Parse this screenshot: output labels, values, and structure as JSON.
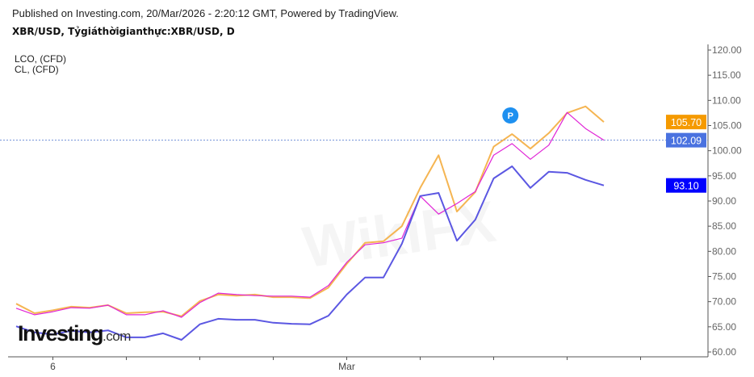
{
  "header": {
    "published": "Published on Investing.com, 20/Mar/2026 - 2:20:12 GMT, Powered by TradingView.",
    "symbol_line": "XBR/USD, Tỷgiáthờigianthực:XBR/USD, D"
  },
  "legend": [
    "LCO,  (CFD)",
    "CL,  (CFD)"
  ],
  "logo": {
    "main": "Investing",
    "suffix": ".com"
  },
  "watermark": "WikiFX",
  "chart_data": {
    "type": "line",
    "title": "XBR/USD, Tỷgiáthờigianthực:XBR/USD, D",
    "x_tick_labels": [
      {
        "index": 2,
        "label": "6"
      },
      {
        "index": 18,
        "label": "Mar"
      }
    ],
    "x_tick_indices": [
      2,
      6,
      10,
      14,
      18,
      22,
      26,
      30,
      34
    ],
    "ylim": [
      60,
      120
    ],
    "y_ticks": [
      "60.00",
      "65.00",
      "70.00",
      "75.00",
      "80.00",
      "85.00",
      "90.00",
      "95.00",
      "100.00",
      "105.00",
      "110.00",
      "115.00",
      "120.00"
    ],
    "grid": false,
    "reference_line": 102.09,
    "series": [
      {
        "name": "XBR/USD",
        "color": "#f5b552",
        "last_label": "105.70",
        "label_bg": "#f59a00",
        "values": [
          69.6,
          67.7,
          68.3,
          69.0,
          68.8,
          69.3,
          67.7,
          67.9,
          68.0,
          67.1,
          70.1,
          71.4,
          71.2,
          71.4,
          70.9,
          70.9,
          70.7,
          72.8,
          77.5,
          81.7,
          82.0,
          85.0,
          92.6,
          99.1,
          87.9,
          91.8,
          100.8,
          103.3,
          100.4,
          103.5,
          107.5,
          108.8,
          105.7
        ]
      },
      {
        "name": "LCO, (CFD)",
        "color": "#e024d6",
        "last_label": "102.09",
        "label_bg": "#4a72e0",
        "values": [
          68.7,
          67.4,
          68.0,
          68.8,
          68.7,
          69.3,
          67.4,
          67.4,
          68.2,
          66.9,
          69.8,
          71.7,
          71.4,
          71.2,
          71.1,
          71.1,
          70.9,
          73.2,
          77.8,
          81.3,
          81.7,
          82.6,
          91.0,
          87.4,
          89.5,
          91.9,
          99.1,
          101.4,
          98.3,
          101.1,
          107.6,
          104.4,
          102.09
        ]
      },
      {
        "name": "CL, (CFD)",
        "color": "#5b57e2",
        "last_label": "93.10",
        "label_bg": "#0000ff",
        "values": [
          65.1,
          63.9,
          63.5,
          64.2,
          63.9,
          64.3,
          62.9,
          62.9,
          63.7,
          62.4,
          65.5,
          66.6,
          66.4,
          66.4,
          65.8,
          65.6,
          65.5,
          67.2,
          71.4,
          74.8,
          74.8,
          81.5,
          91.0,
          91.6,
          82.1,
          86.3,
          94.5,
          96.9,
          92.6,
          95.8,
          95.6,
          94.2,
          93.1
        ]
      }
    ],
    "marker": {
      "label": "P",
      "index": 27,
      "value": 107.0,
      "color": "#1e90f0"
    }
  }
}
